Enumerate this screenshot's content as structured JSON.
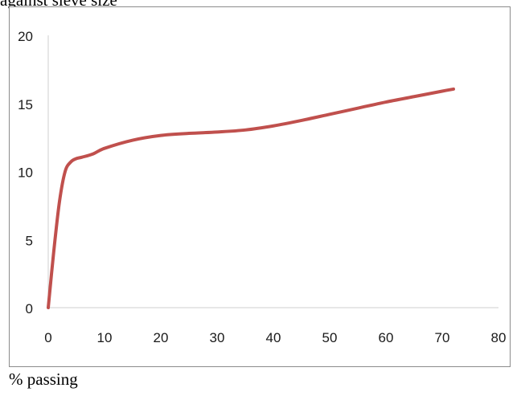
{
  "caption_top": "against sieve size",
  "caption_bottom": "% passing",
  "chart_data": {
    "type": "line",
    "xlim": [
      0,
      80
    ],
    "ylim": [
      0,
      20
    ],
    "xticks": [
      0,
      10,
      20,
      30,
      40,
      50,
      60,
      70,
      80
    ],
    "yticks": [
      0,
      5,
      10,
      15,
      20
    ],
    "grid": false,
    "legend": "none",
    "series": [
      {
        "color": "#c0504d",
        "x": [
          0,
          1,
          2,
          3,
          4,
          5,
          6,
          8,
          10,
          15,
          20,
          25,
          30,
          35,
          40,
          45,
          50,
          55,
          60,
          65,
          70,
          72
        ],
        "y": [
          0,
          4.2,
          7.8,
          10.0,
          10.7,
          10.95,
          11.05,
          11.3,
          11.7,
          12.3,
          12.65,
          12.8,
          12.9,
          13.05,
          13.35,
          13.75,
          14.2,
          14.65,
          15.1,
          15.5,
          15.9,
          16.05
        ]
      }
    ]
  }
}
